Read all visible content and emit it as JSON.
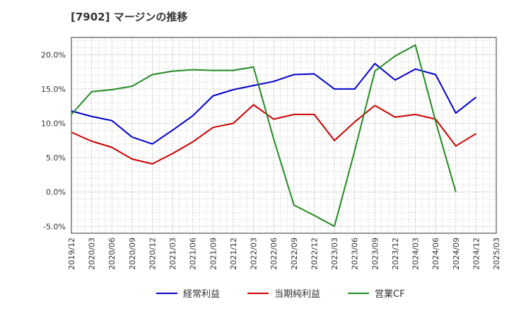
{
  "chart_data": {
    "type": "line",
    "title": "[7902]  マージンの推移",
    "xlabel": "",
    "ylabel": "",
    "ylim": [
      -6.0,
      22.5
    ],
    "yticks": [
      -5,
      0,
      5,
      10,
      15,
      20
    ],
    "ytick_labels": [
      "-5.0%",
      "0.0%",
      "5.0%",
      "10.0%",
      "15.0%",
      "20.0%"
    ],
    "xticks": [
      "2019/12",
      "2020/03",
      "2020/06",
      "2020/09",
      "2020/12",
      "2021/03",
      "2021/06",
      "2021/09",
      "2021/12",
      "2022/03",
      "2022/06",
      "2022/09",
      "2022/12",
      "2023/03",
      "2023/06",
      "2023/09",
      "2023/12",
      "2024/03",
      "2024/06",
      "2024/09",
      "2024/12",
      "2025/03"
    ],
    "grid": true,
    "legend_position": "bottom",
    "x": [
      "2019/12",
      "2020/03",
      "2020/06",
      "2020/09",
      "2020/12",
      "2021/03",
      "2021/06",
      "2021/09",
      "2021/12",
      "2022/03",
      "2022/06",
      "2022/09",
      "2022/12",
      "2023/03",
      "2023/06",
      "2023/09",
      "2023/12",
      "2024/03",
      "2024/06",
      "2024/09",
      "2024/12"
    ],
    "series": [
      {
        "name": "経常利益",
        "color": "#0000cc",
        "values": [
          11.8,
          11.0,
          10.4,
          8.0,
          7.0,
          9.0,
          11.1,
          14.0,
          14.9,
          15.5,
          16.1,
          17.1,
          17.2,
          15.0,
          15.0,
          18.7,
          16.3,
          17.9,
          17.1,
          11.5,
          13.8
        ]
      },
      {
        "name": "当期純利益",
        "color": "#cc0000",
        "values": [
          8.7,
          7.4,
          6.5,
          4.8,
          4.1,
          5.6,
          7.3,
          9.4,
          10.0,
          12.7,
          10.6,
          11.3,
          11.3,
          7.5,
          10.2,
          12.6,
          10.9,
          11.3,
          10.6,
          6.7,
          8.5
        ]
      },
      {
        "name": "営業CF",
        "color": "#228b22",
        "values": [
          11.3,
          14.6,
          14.9,
          15.4,
          17.1,
          17.6,
          17.8,
          17.7,
          17.7,
          18.2,
          7.7,
          -1.9,
          -3.4,
          -5.0,
          6.0,
          17.6,
          19.8,
          21.4,
          10.3,
          0.0,
          null
        ]
      }
    ]
  }
}
